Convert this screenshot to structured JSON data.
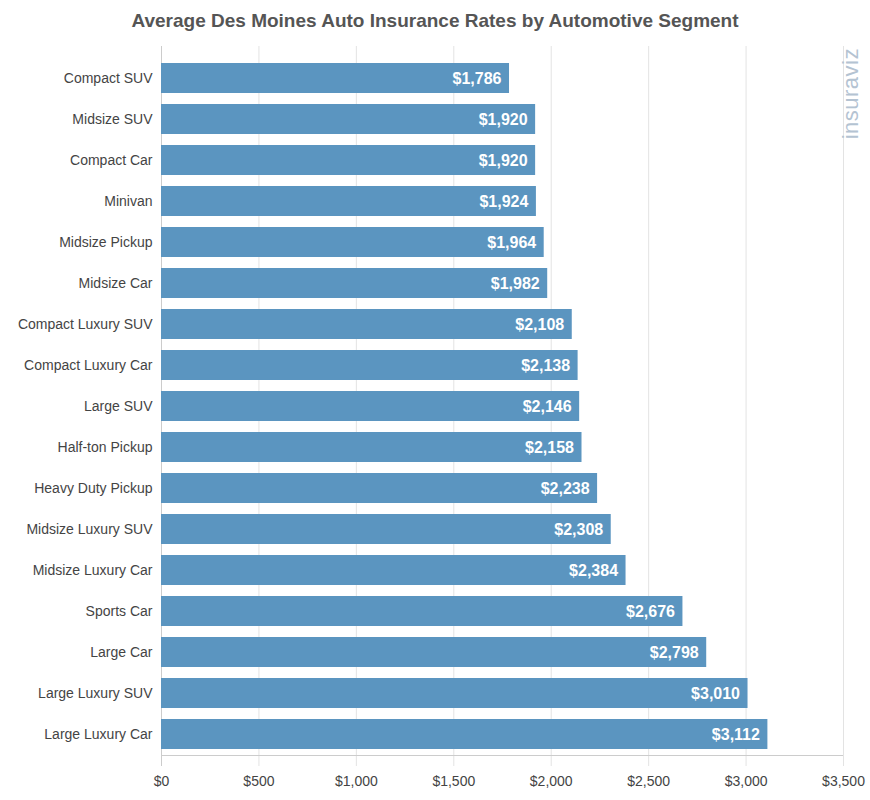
{
  "chart_data": {
    "type": "bar",
    "orientation": "horizontal",
    "title": "Average Des Moines Auto Insurance Rates by Automotive Segment",
    "categories": [
      "Compact SUV",
      "Midsize SUV",
      "Compact Car",
      "Minivan",
      "Midsize Pickup",
      "Midsize Car",
      "Compact Luxury SUV",
      "Compact Luxury Car",
      "Large SUV",
      "Half-ton Pickup",
      "Heavy Duty Pickup",
      "Midsize Luxury SUV",
      "Midsize Luxury Car",
      "Sports Car",
      "Large Car",
      "Large Luxury SUV",
      "Large Luxury Car"
    ],
    "values": [
      1786,
      1920,
      1920,
      1924,
      1964,
      1982,
      2108,
      2138,
      2146,
      2158,
      2238,
      2308,
      2384,
      2676,
      2798,
      3010,
      3112
    ],
    "value_labels": [
      "$1,786",
      "$1,920",
      "$1,920",
      "$1,924",
      "$1,964",
      "$1,982",
      "$2,108",
      "$2,138",
      "$2,146",
      "$2,158",
      "$2,238",
      "$2,308",
      "$2,384",
      "$2,676",
      "$2,798",
      "$3,010",
      "$3,112"
    ],
    "data_labels": true,
    "color": "#5b95c0",
    "xlim": [
      0,
      3500
    ],
    "xticks": [
      {
        "value": 0,
        "label": "$0"
      },
      {
        "value": 500,
        "label": "$500"
      },
      {
        "value": 1000,
        "label": "$1,000"
      },
      {
        "value": 1500,
        "label": "$1,500"
      },
      {
        "value": 2000,
        "label": "$2,000"
      },
      {
        "value": 2500,
        "label": "$2,500"
      },
      {
        "value": 3000,
        "label": "$3,000"
      },
      {
        "value": 3500,
        "label": "$3,500"
      }
    ],
    "grid": true,
    "annotations": [
      "insuraviz"
    ]
  }
}
